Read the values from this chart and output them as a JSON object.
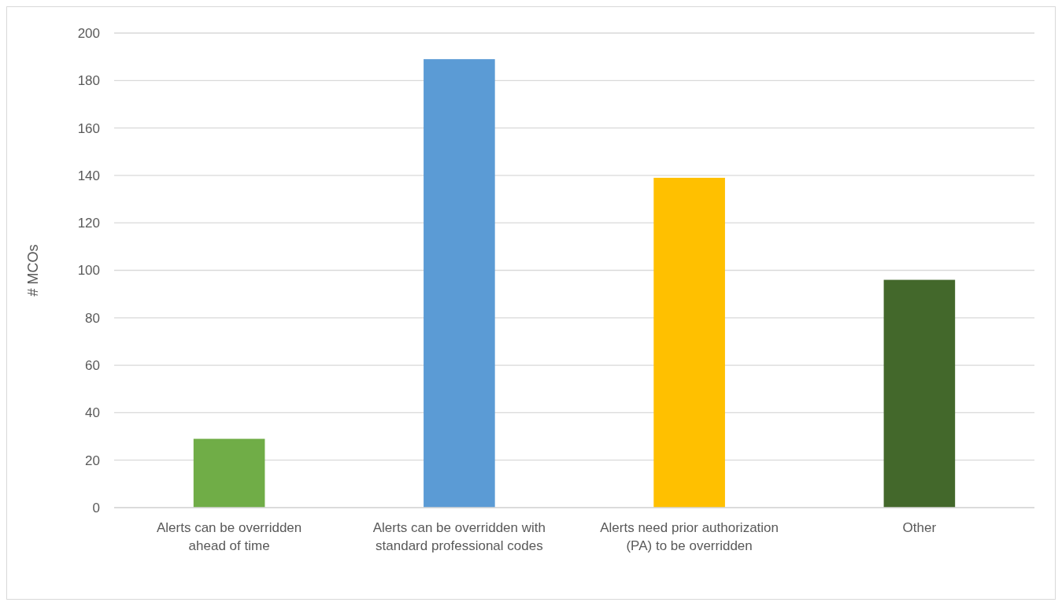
{
  "chart_data": {
    "type": "bar",
    "ylabel": "# MCOs",
    "categories": [
      "Alerts can be overridden ahead of time",
      "Alerts can be overridden with standard professional codes",
      "Alerts need prior authorization (PA) to be overridden",
      "Other"
    ],
    "values": [
      29,
      189,
      139,
      96
    ],
    "colors": [
      "#70ad47",
      "#5b9bd5",
      "#ffc000",
      "#43682b"
    ],
    "ylim": [
      0,
      200
    ],
    "yticks": [
      0,
      20,
      40,
      60,
      80,
      100,
      120,
      140,
      160,
      180,
      200
    ],
    "grid": "y"
  }
}
